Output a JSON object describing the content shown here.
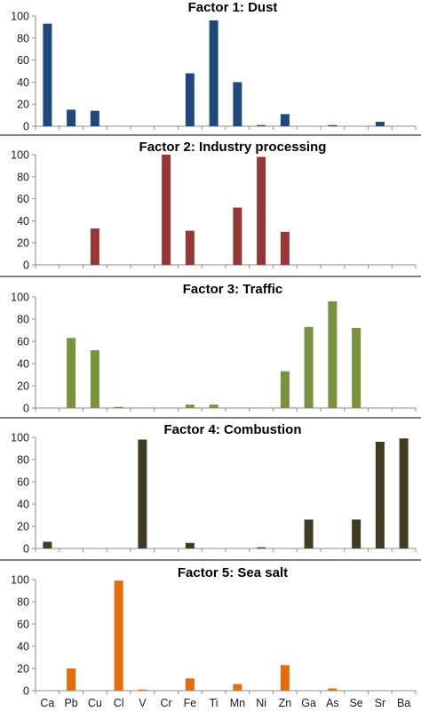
{
  "chart_data": [
    {
      "type": "bar",
      "title": "Factor 1: Dust",
      "color": "#1f497d",
      "categories": [
        "Ca",
        "Pb",
        "Cu",
        "Cl",
        "V",
        "Cr",
        "Fe",
        "Ti",
        "Mn",
        "Ni",
        "Zn",
        "Ga",
        "As",
        "Se",
        "Sr",
        "Ba"
      ],
      "values": [
        93,
        15,
        14,
        0,
        0,
        0,
        48,
        96,
        40,
        1,
        11,
        0,
        1,
        0,
        4,
        0
      ],
      "ylim": [
        0,
        100
      ],
      "yticks": [
        0,
        20,
        40,
        60,
        80,
        100
      ],
      "xlabel": "",
      "ylabel": ""
    },
    {
      "type": "bar",
      "title": "Factor 2: Industry processing",
      "color": "#953735",
      "categories": [
        "Ca",
        "Pb",
        "Cu",
        "Cl",
        "V",
        "Cr",
        "Fe",
        "Ti",
        "Mn",
        "Ni",
        "Zn",
        "Ga",
        "As",
        "Se",
        "Sr",
        "Ba"
      ],
      "values": [
        0,
        0,
        33,
        0,
        0,
        100,
        31,
        0,
        52,
        98,
        30,
        0,
        0,
        0,
        0,
        0
      ],
      "ylim": [
        0,
        100
      ],
      "yticks": [
        0,
        20,
        40,
        60,
        80,
        100
      ],
      "xlabel": "",
      "ylabel": ""
    },
    {
      "type": "bar",
      "title": "Factor 3: Traffic",
      "color": "#77933c",
      "categories": [
        "Ca",
        "Pb",
        "Cu",
        "Cl",
        "V",
        "Cr",
        "Fe",
        "Ti",
        "Mn",
        "Ni",
        "Zn",
        "Ga",
        "As",
        "Se",
        "Sr",
        "Ba"
      ],
      "values": [
        0,
        63,
        52,
        1,
        0,
        0,
        3,
        3,
        0,
        0,
        33,
        73,
        96,
        72,
        0,
        0
      ],
      "ylim": [
        0,
        100
      ],
      "yticks": [
        0,
        20,
        40,
        60,
        80,
        100
      ],
      "xlabel": "",
      "ylabel": ""
    },
    {
      "type": "bar",
      "title": "Factor 4: Combustion",
      "color": "#403c22",
      "categories": [
        "Ca",
        "Pb",
        "Cu",
        "Cl",
        "V",
        "Cr",
        "Fe",
        "Ti",
        "Mn",
        "Ni",
        "Zn",
        "Ga",
        "As",
        "Se",
        "Sr",
        "Ba"
      ],
      "values": [
        6,
        0,
        0,
        0,
        98,
        0,
        5,
        0,
        0,
        1,
        0,
        26,
        0,
        26,
        96,
        99
      ],
      "ylim": [
        0,
        100
      ],
      "yticks": [
        0,
        20,
        40,
        60,
        80,
        100
      ],
      "xlabel": "",
      "ylabel": ""
    },
    {
      "type": "bar",
      "title": "Factor 5: Sea salt",
      "color": "#e46c0a",
      "categories": [
        "Ca",
        "Pb",
        "Cu",
        "Cl",
        "V",
        "Cr",
        "Fe",
        "Ti",
        "Mn",
        "Ni",
        "Zn",
        "Ga",
        "As",
        "Se",
        "Sr",
        "Ba"
      ],
      "values": [
        0,
        20,
        0,
        99,
        1,
        0,
        11,
        0,
        6,
        0,
        23,
        0,
        2,
        0,
        0,
        0
      ],
      "ylim": [
        0,
        100
      ],
      "yticks": [
        0,
        20,
        40,
        60,
        80,
        100
      ],
      "xlabel": "",
      "ylabel": ""
    }
  ]
}
